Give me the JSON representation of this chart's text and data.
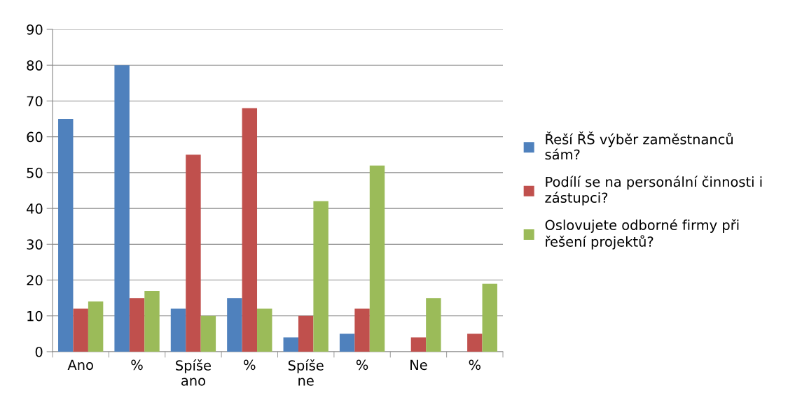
{
  "chart_data": {
    "type": "bar",
    "categories": [
      "Ano",
      "%",
      "Spíše\nano",
      "%",
      "Spíše\nne",
      "%",
      "Ne",
      "%"
    ],
    "series": [
      {
        "name": "Řeší ŘŠ výběr zaměstnanců\nsám?",
        "color": "#4f81bd",
        "values": [
          65,
          80,
          12,
          15,
          4,
          5,
          0,
          0
        ]
      },
      {
        "name": "Podílí se na personální činnosti i\nzástupci?",
        "color": "#c0504d",
        "values": [
          12,
          15,
          55,
          68,
          10,
          12,
          4,
          5
        ]
      },
      {
        "name": "Oslovujete odborné firmy při\nřešení projektů?",
        "color": "#9bbb59",
        "values": [
          14,
          17,
          10,
          12,
          42,
          52,
          15,
          19
        ]
      }
    ],
    "ylim": [
      0,
      90
    ],
    "yticks": [
      0,
      10,
      20,
      30,
      40,
      50,
      60,
      70,
      80,
      90
    ],
    "grid": "y",
    "legend": "right"
  }
}
